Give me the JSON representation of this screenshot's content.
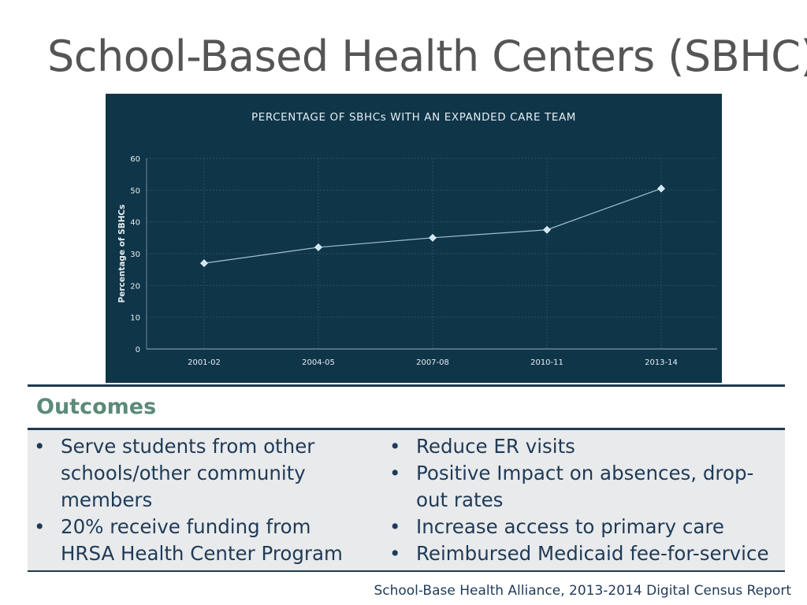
{
  "slide": {
    "title": "School-Based Health Centers (SBHC)",
    "source": "School-Base Health Alliance, 2013-2014 Digital Census Report"
  },
  "chart_data": {
    "type": "line",
    "title": "PERCENTAGE OF SBHCs WITH AN EXPANDED CARE TEAM",
    "xlabel": "",
    "ylabel": "Percentage of SBHCs",
    "categories": [
      "2001-02",
      "2004-05",
      "2007-08",
      "2010-11",
      "2013-14"
    ],
    "values": [
      27,
      32,
      35,
      37.5,
      50.5
    ],
    "ylim": [
      0,
      60
    ],
    "yticks": [
      0,
      10,
      20,
      30,
      40,
      50,
      60
    ],
    "grid": true,
    "colors": {
      "background": "#0f3548",
      "line": "#9fc3d6",
      "marker": "#cfe6f5",
      "text": "#e6edf2",
      "grid": "#2c4f62"
    }
  },
  "outcomes": {
    "header": "Outcomes",
    "left": [
      "Serve students from other schools/other community members",
      "20% receive funding from HRSA Health Center Program"
    ],
    "right": [
      "Reduce ER visits",
      "Positive Impact on absences, drop-out rates",
      "Increase access to primary care",
      "Reimbursed Medicaid fee-for-service"
    ],
    "bullet": "•"
  }
}
